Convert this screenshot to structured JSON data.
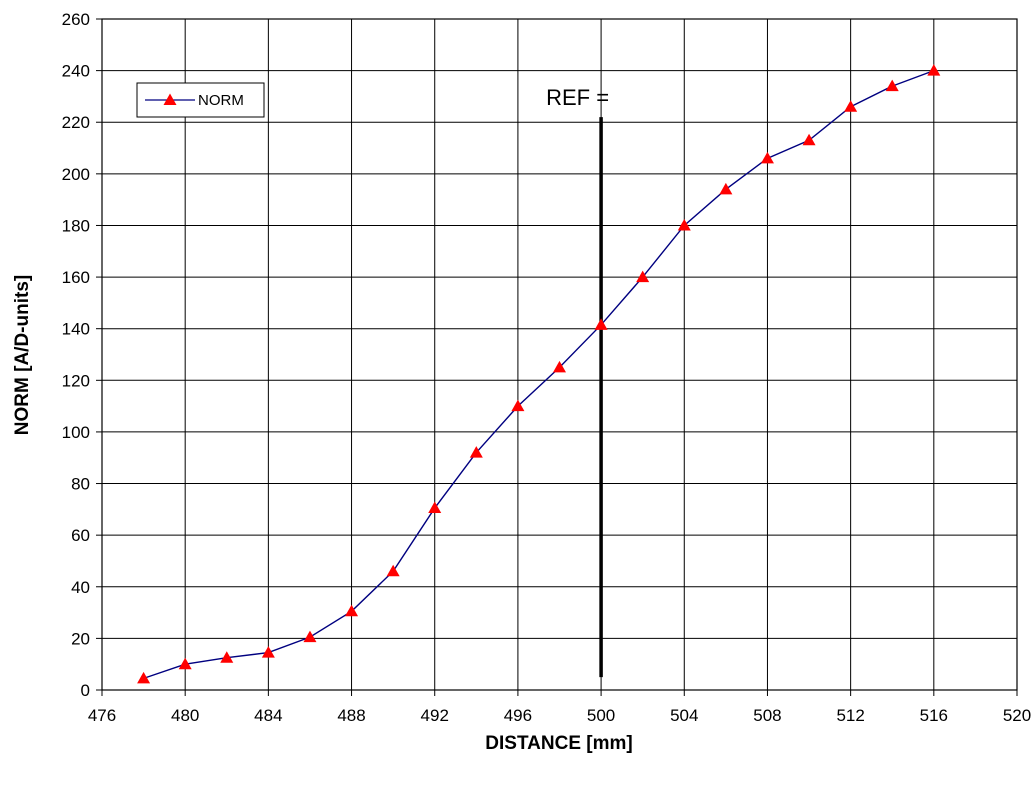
{
  "chart_data": {
    "type": "line",
    "xlabel": "DISTANCE [mm]",
    "ylabel": "NORM [A/D-units]",
    "xlim": [
      476,
      520
    ],
    "ylim": [
      0,
      260
    ],
    "x_ticks": [
      476,
      480,
      484,
      488,
      492,
      496,
      500,
      504,
      508,
      512,
      516,
      520
    ],
    "y_ticks": [
      0,
      20,
      40,
      60,
      80,
      100,
      120,
      140,
      160,
      180,
      200,
      220,
      240,
      260
    ],
    "grid": true,
    "legend_position": "top-left",
    "series": [
      {
        "name": "NORM",
        "line_color": "#000080",
        "marker": "triangle",
        "marker_color": "#ff0000",
        "x": [
          478,
          480,
          482,
          484,
          486,
          488,
          490,
          492,
          494,
          496,
          498,
          500,
          502,
          504,
          506,
          508,
          510,
          512,
          514,
          516
        ],
        "y": [
          4.5,
          10,
          12.5,
          14.5,
          20.5,
          30.5,
          46,
          70.5,
          92,
          110,
          125,
          141.5,
          160,
          180,
          194,
          206,
          213,
          226,
          234,
          240
        ]
      }
    ],
    "annotations": [
      {
        "text": "REF =",
        "type": "vertical-line",
        "x": 500,
        "y_from": 5,
        "y_to": 222
      }
    ]
  }
}
